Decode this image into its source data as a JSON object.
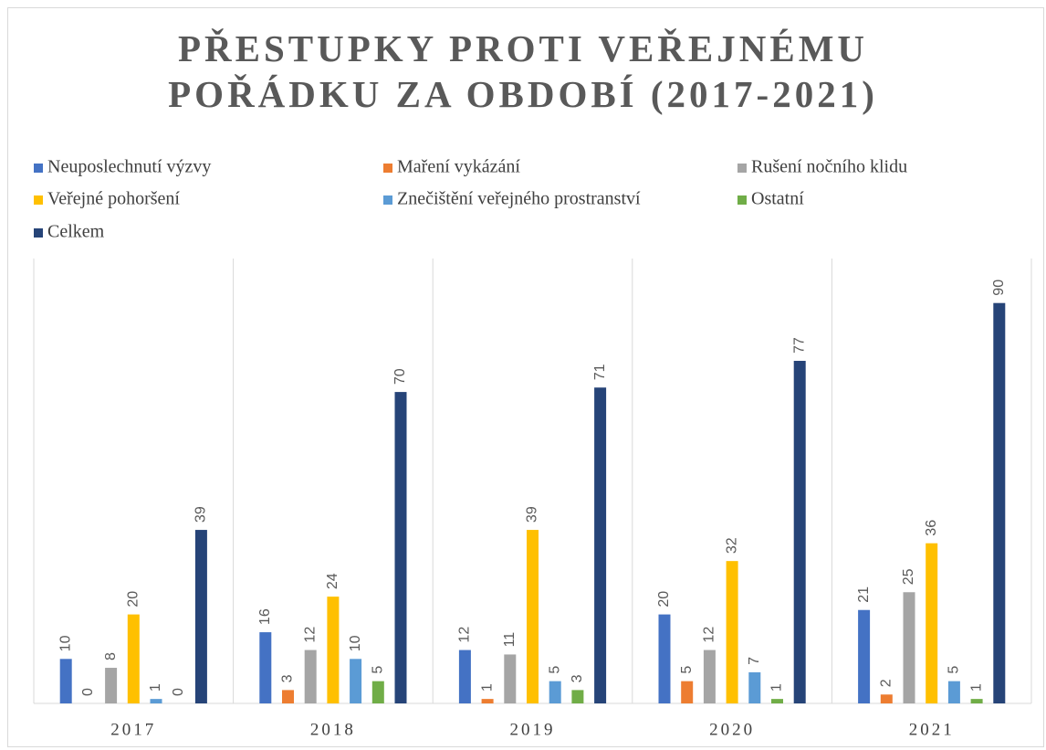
{
  "chart_data": {
    "type": "bar",
    "title": "PŘESTUPKY PROTI VEŘEJNÉMU POŘÁDKU ZA OBDOBÍ (2017-2021)",
    "categories": [
      "2017",
      "2018",
      "2019",
      "2020",
      "2021"
    ],
    "series": [
      {
        "name": "Neuposlechnutí výzvy",
        "color": "#4472c4",
        "values": [
          10,
          16,
          12,
          20,
          21
        ]
      },
      {
        "name": "Maření vykázání",
        "color": "#ed7d31",
        "values": [
          0,
          3,
          1,
          5,
          2
        ]
      },
      {
        "name": "Rušení nočního klidu",
        "color": "#a5a5a5",
        "values": [
          8,
          12,
          11,
          12,
          25
        ]
      },
      {
        "name": "Veřejné pohoršení",
        "color": "#ffc000",
        "values": [
          20,
          24,
          39,
          32,
          36
        ]
      },
      {
        "name": "Znečištění veřejného prostranství",
        "color": "#5b9bd5",
        "values": [
          1,
          10,
          5,
          7,
          5
        ]
      },
      {
        "name": "Ostatní",
        "color": "#70ad47",
        "values": [
          0,
          5,
          3,
          1,
          1
        ]
      },
      {
        "name": "Celkem",
        "color": "#264478",
        "values": [
          39,
          70,
          71,
          77,
          90
        ]
      }
    ],
    "ylim": [
      0,
      100
    ],
    "legend": "top"
  }
}
